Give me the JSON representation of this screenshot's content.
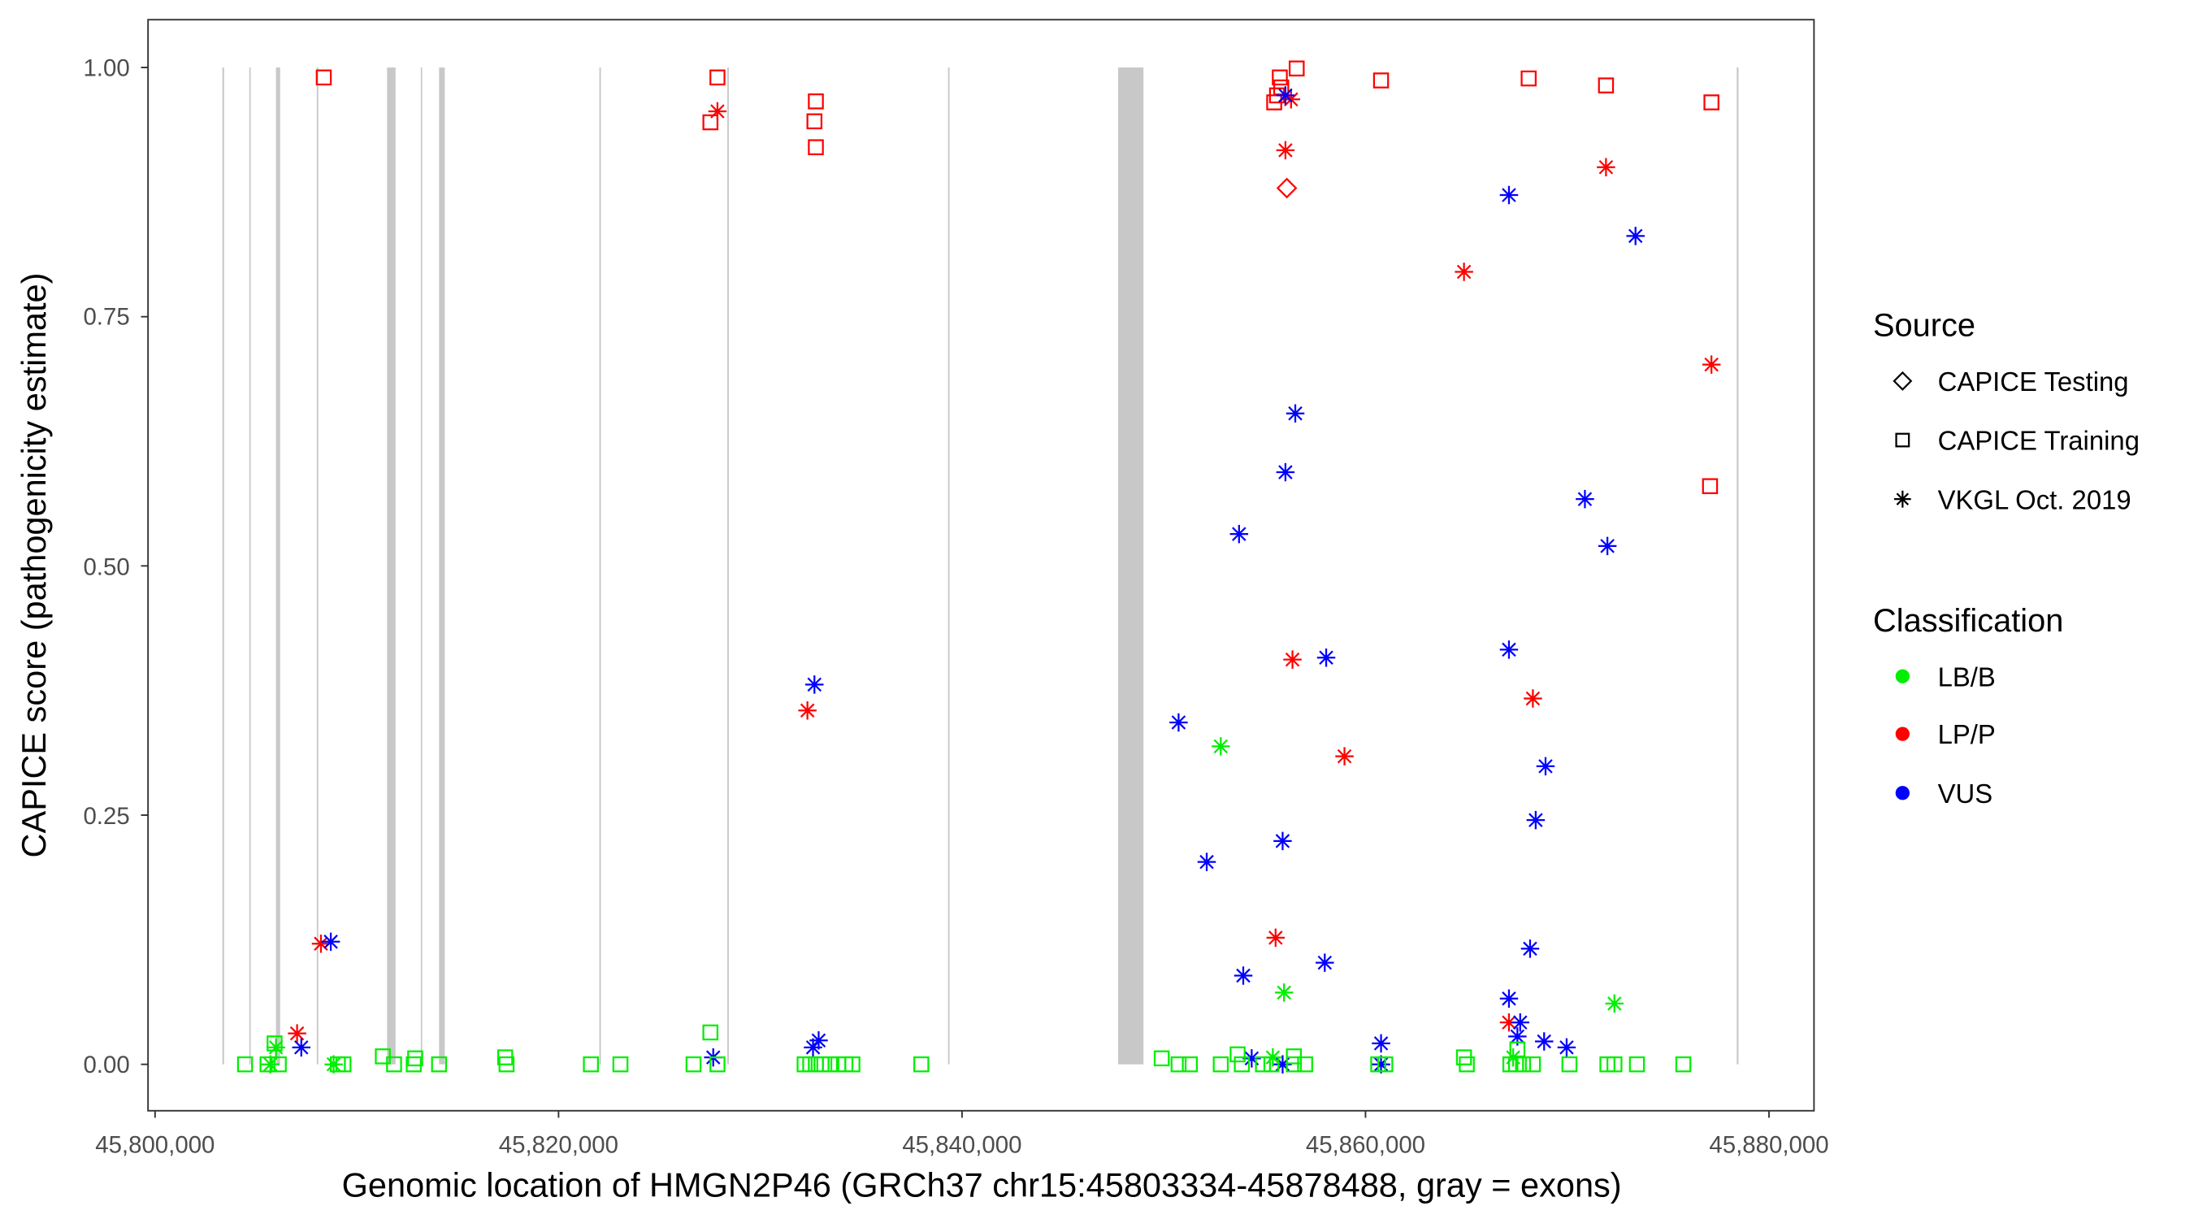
{
  "chart_data": {
    "type": "scatter",
    "xlabel": "Genomic location of HMGN2P46 (GRCh37 chr15:45803334-45878488, gray = exons)",
    "ylabel": "CAPICE score (pathogenicity estimate)",
    "xlim": [
      45799200,
      45882800
    ],
    "ylim": [
      -0.046,
      1.048
    ],
    "x_ticks": [
      45800000,
      45820000,
      45840000,
      45860000,
      45880000
    ],
    "x_tick_labels": [
      "45,800,000",
      "45,820,000",
      "45,840,000",
      "45,860,000",
      "45,880,000"
    ],
    "y_ticks": [
      0,
      0.25,
      0.5,
      0.75,
      1.0
    ],
    "y_tick_labels": [
      "0.00",
      "0.25",
      "0.50",
      "0.75",
      "1.00"
    ],
    "grid": false,
    "legend_placement": "right",
    "legend": {
      "source_title": "Source",
      "source_items": [
        {
          "label": "CAPICE Testing",
          "shape": "diamond"
        },
        {
          "label": "CAPICE Training",
          "shape": "square"
        },
        {
          "label": "VKGL Oct. 2019",
          "shape": "asterisk"
        }
      ],
      "class_title": "Classification",
      "class_items": [
        {
          "label": "LB/B",
          "color": "#00ee00"
        },
        {
          "label": "LP/P",
          "color": "#ff0000"
        },
        {
          "label": "VUS",
          "color": "#0000ff"
        }
      ]
    },
    "exon_color": "#c8c8c8",
    "exons": [
      [
        45803334,
        45803420
      ],
      [
        45804669,
        45804740
      ],
      [
        45805993,
        45806200
      ],
      [
        45808014,
        45808090
      ],
      [
        45811499,
        45811920
      ],
      [
        45813171,
        45813240
      ],
      [
        45814077,
        45814360
      ],
      [
        45822022,
        45822100
      ],
      [
        45828364,
        45828440
      ],
      [
        45839305,
        45839380
      ],
      [
        45847738,
        45848992
      ],
      [
        45878400,
        45878488
      ]
    ],
    "point_columns": [
      "position",
      "score",
      "source",
      "classification"
    ],
    "points": [
      [
        45808363,
        0.99,
        "CAPICE Training",
        "LP/P"
      ],
      [
        45827876,
        0.99,
        "CAPICE Training",
        "LP/P"
      ],
      [
        45827528,
        0.945,
        "CAPICE Training",
        "LP/P"
      ],
      [
        45832754,
        0.966,
        "CAPICE Training",
        "LP/P"
      ],
      [
        45832684,
        0.946,
        "CAPICE Training",
        "LP/P"
      ],
      [
        45832754,
        0.92,
        "CAPICE Training",
        "LP/P"
      ],
      [
        45856588,
        0.999,
        "CAPICE Training",
        "LP/P"
      ],
      [
        45855752,
        0.99,
        "CAPICE Training",
        "LP/P"
      ],
      [
        45855822,
        0.98,
        "CAPICE Training",
        "LP/P"
      ],
      [
        45855613,
        0.972,
        "CAPICE Training",
        "LP/P"
      ],
      [
        45855473,
        0.965,
        "CAPICE Training",
        "LP/P"
      ],
      [
        45860770,
        0.987,
        "CAPICE Training",
        "LP/P"
      ],
      [
        45868087,
        0.989,
        "CAPICE Training",
        "LP/P"
      ],
      [
        45871920,
        0.982,
        "CAPICE Training",
        "LP/P"
      ],
      [
        45877147,
        0.965,
        "CAPICE Training",
        "LP/P"
      ],
      [
        45877077,
        0.58,
        "CAPICE Training",
        "LP/P"
      ],
      [
        45856100,
        0.879,
        "CAPICE Testing",
        "LP/P"
      ],
      [
        45827876,
        0.956,
        "VKGL Oct. 2019",
        "LP/P"
      ],
      [
        45856309,
        0.968,
        "VKGL Oct. 2019",
        "LP/P"
      ],
      [
        45856030,
        0.917,
        "VKGL Oct. 2019",
        "LP/P"
      ],
      [
        45871920,
        0.9,
        "VKGL Oct. 2019",
        "LP/P"
      ],
      [
        45864881,
        0.795,
        "VKGL Oct. 2019",
        "LP/P"
      ],
      [
        45877147,
        0.702,
        "VKGL Oct. 2019",
        "LP/P"
      ],
      [
        45856379,
        0.406,
        "VKGL Oct. 2019",
        "LP/P"
      ],
      [
        45832336,
        0.355,
        "VKGL Oct. 2019",
        "LP/P"
      ],
      [
        45868296,
        0.367,
        "VKGL Oct. 2019",
        "LP/P"
      ],
      [
        45858957,
        0.309,
        "VKGL Oct. 2019",
        "LP/P"
      ],
      [
        45855543,
        0.127,
        "VKGL Oct. 2019",
        "LP/P"
      ],
      [
        45808223,
        0.121,
        "VKGL Oct. 2019",
        "LP/P"
      ],
      [
        45807039,
        0.031,
        "VKGL Oct. 2019",
        "LP/P"
      ],
      [
        45867110,
        0.042,
        "VKGL Oct. 2019",
        "LP/P"
      ],
      [
        45856030,
        0.972,
        "VKGL Oct. 2019",
        "VUS"
      ],
      [
        45867110,
        0.872,
        "VKGL Oct. 2019",
        "VUS"
      ],
      [
        45873383,
        0.831,
        "VKGL Oct. 2019",
        "VUS"
      ],
      [
        45856519,
        0.653,
        "VKGL Oct. 2019",
        "VUS"
      ],
      [
        45856030,
        0.594,
        "VKGL Oct. 2019",
        "VUS"
      ],
      [
        45853731,
        0.532,
        "VKGL Oct. 2019",
        "VUS"
      ],
      [
        45870875,
        0.567,
        "VKGL Oct. 2019",
        "VUS"
      ],
      [
        45871990,
        0.52,
        "VKGL Oct. 2019",
        "VUS"
      ],
      [
        45832684,
        0.381,
        "VKGL Oct. 2019",
        "VUS"
      ],
      [
        45858050,
        0.408,
        "VKGL Oct. 2019",
        "VUS"
      ],
      [
        45867110,
        0.416,
        "VKGL Oct. 2019",
        "VUS"
      ],
      [
        45850734,
        0.343,
        "VKGL Oct. 2019",
        "VUS"
      ],
      [
        45868923,
        0.299,
        "VKGL Oct. 2019",
        "VUS"
      ],
      [
        45868435,
        0.245,
        "VKGL Oct. 2019",
        "VUS"
      ],
      [
        45855891,
        0.224,
        "VKGL Oct. 2019",
        "VUS"
      ],
      [
        45852128,
        0.203,
        "VKGL Oct. 2019",
        "VUS"
      ],
      [
        45808711,
        0.123,
        "VKGL Oct. 2019",
        "VUS"
      ],
      [
        45868157,
        0.116,
        "VKGL Oct. 2019",
        "VUS"
      ],
      [
        45857980,
        0.102,
        "VKGL Oct. 2019",
        "VUS"
      ],
      [
        45853940,
        0.089,
        "VKGL Oct. 2019",
        "VUS"
      ],
      [
        45867110,
        0.066,
        "VKGL Oct. 2019",
        "VUS"
      ],
      [
        45807248,
        0.017,
        "VKGL Oct. 2019",
        "VUS"
      ],
      [
        45832893,
        0.024,
        "VKGL Oct. 2019",
        "VUS"
      ],
      [
        45832614,
        0.017,
        "VKGL Oct. 2019",
        "VUS"
      ],
      [
        45867667,
        0.042,
        "VKGL Oct. 2019",
        "VUS"
      ],
      [
        45867528,
        0.028,
        "VKGL Oct. 2019",
        "VUS"
      ],
      [
        45868853,
        0.023,
        "VKGL Oct. 2019",
        "VUS"
      ],
      [
        45869968,
        0.017,
        "VKGL Oct. 2019",
        "VUS"
      ],
      [
        45860770,
        0.021,
        "VKGL Oct. 2019",
        "VUS"
      ],
      [
        45854358,
        0.006,
        "VKGL Oct. 2019",
        "VUS"
      ],
      [
        45855891,
        0.0,
        "VKGL Oct. 2019",
        "VUS"
      ],
      [
        45860770,
        0.0,
        "VKGL Oct. 2019",
        "VUS"
      ],
      [
        45827667,
        0.007,
        "VKGL Oct. 2019",
        "VUS"
      ],
      [
        45852825,
        0.319,
        "VKGL Oct. 2019",
        "LB/B"
      ],
      [
        45855961,
        0.072,
        "VKGL Oct. 2019",
        "LB/B"
      ],
      [
        45872338,
        0.061,
        "VKGL Oct. 2019",
        "LB/B"
      ],
      [
        45805715,
        0.0,
        "VKGL Oct. 2019",
        "LB/B"
      ],
      [
        45808851,
        0.0,
        "VKGL Oct. 2019",
        "LB/B"
      ],
      [
        45805994,
        0.017,
        "VKGL Oct. 2019",
        "LB/B"
      ],
      [
        45855404,
        0.007,
        "VKGL Oct. 2019",
        "LB/B"
      ],
      [
        45867319,
        0.007,
        "VKGL Oct. 2019",
        "LB/B"
      ],
      [
        45804460,
        0.0,
        "CAPICE Training",
        "LB/B"
      ],
      [
        45805575,
        0.0,
        "CAPICE Training",
        "LB/B"
      ],
      [
        45806133,
        0.0,
        "CAPICE Training",
        "LB/B"
      ],
      [
        45809060,
        0.0,
        "CAPICE Training",
        "LB/B"
      ],
      [
        45809338,
        0.0,
        "CAPICE Training",
        "LB/B"
      ],
      [
        45811847,
        0.0,
        "CAPICE Training",
        "LB/B"
      ],
      [
        45812823,
        0.0,
        "CAPICE Training",
        "LB/B"
      ],
      [
        45814077,
        0.0,
        "CAPICE Training",
        "LB/B"
      ],
      [
        45817423,
        0.0,
        "CAPICE Training",
        "LB/B"
      ],
      [
        45821604,
        0.0,
        "CAPICE Training",
        "LB/B"
      ],
      [
        45823067,
        0.0,
        "CAPICE Training",
        "LB/B"
      ],
      [
        45826691,
        0.0,
        "CAPICE Training",
        "LB/B"
      ],
      [
        45827876,
        0.0,
        "CAPICE Training",
        "LB/B"
      ],
      [
        45832197,
        0.0,
        "CAPICE Training",
        "LB/B"
      ],
      [
        45832476,
        0.0,
        "CAPICE Training",
        "LB/B"
      ],
      [
        45832754,
        0.0,
        "CAPICE Training",
        "LB/B"
      ],
      [
        45833033,
        0.0,
        "CAPICE Training",
        "LB/B"
      ],
      [
        45833451,
        0.0,
        "CAPICE Training",
        "LB/B"
      ],
      [
        45833869,
        0.0,
        "CAPICE Training",
        "LB/B"
      ],
      [
        45834218,
        0.0,
        "CAPICE Training",
        "LB/B"
      ],
      [
        45834566,
        0.0,
        "CAPICE Training",
        "LB/B"
      ],
      [
        45837981,
        0.0,
        "CAPICE Training",
        "LB/B"
      ],
      [
        45850734,
        0.0,
        "CAPICE Training",
        "LB/B"
      ],
      [
        45851292,
        0.0,
        "CAPICE Training",
        "LB/B"
      ],
      [
        45852825,
        0.0,
        "CAPICE Training",
        "LB/B"
      ],
      [
        45853870,
        0.0,
        "CAPICE Training",
        "LB/B"
      ],
      [
        45854916,
        0.0,
        "CAPICE Training",
        "LB/B"
      ],
      [
        45855334,
        0.0,
        "CAPICE Training",
        "LB/B"
      ],
      [
        45856449,
        0.0,
        "CAPICE Training",
        "LB/B"
      ],
      [
        45857006,
        0.0,
        "CAPICE Training",
        "LB/B"
      ],
      [
        45860630,
        0.0,
        "CAPICE Training",
        "LB/B"
      ],
      [
        45860979,
        0.0,
        "CAPICE Training",
        "LB/B"
      ],
      [
        45865021,
        0.0,
        "CAPICE Training",
        "LB/B"
      ],
      [
        45867181,
        0.0,
        "CAPICE Training",
        "LB/B"
      ],
      [
        45867460,
        0.0,
        "CAPICE Training",
        "LB/B"
      ],
      [
        45867808,
        0.0,
        "CAPICE Training",
        "LB/B"
      ],
      [
        45868296,
        0.0,
        "CAPICE Training",
        "LB/B"
      ],
      [
        45870108,
        0.0,
        "CAPICE Training",
        "LB/B"
      ],
      [
        45871990,
        0.0,
        "CAPICE Training",
        "LB/B"
      ],
      [
        45872338,
        0.0,
        "CAPICE Training",
        "LB/B"
      ],
      [
        45873453,
        0.0,
        "CAPICE Training",
        "LB/B"
      ],
      [
        45875753,
        0.0,
        "CAPICE Training",
        "LB/B"
      ],
      [
        45805924,
        0.021,
        "CAPICE Training",
        "LB/B"
      ],
      [
        45811290,
        0.008,
        "CAPICE Training",
        "LB/B"
      ],
      [
        45812893,
        0.006,
        "CAPICE Training",
        "LB/B"
      ],
      [
        45817353,
        0.007,
        "CAPICE Training",
        "LB/B"
      ],
      [
        45827528,
        0.032,
        "CAPICE Training",
        "LB/B"
      ],
      [
        45849898,
        0.006,
        "CAPICE Training",
        "LB/B"
      ],
      [
        45853661,
        0.01,
        "CAPICE Training",
        "LB/B"
      ],
      [
        45856449,
        0.008,
        "CAPICE Training",
        "LB/B"
      ],
      [
        45864881,
        0.007,
        "CAPICE Training",
        "LB/B"
      ],
      [
        45867528,
        0.015,
        "CAPICE Training",
        "LB/B"
      ]
    ]
  }
}
